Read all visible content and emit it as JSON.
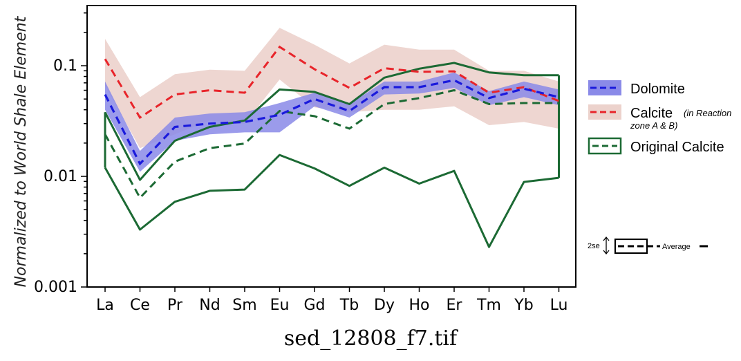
{
  "caption": "sed_12808_f7.tif",
  "colors": {
    "dolomite_line": "#1a1adc",
    "dolomite_band": "#8a8ae8",
    "calcite_line": "#e8242a",
    "calcite_band": "#ecd2cc",
    "original_line": "#1c6a34"
  },
  "chart_data": {
    "type": "line",
    "y_scale": "log",
    "ylim": [
      0.001,
      0.35
    ],
    "ylabel": "Normalized to World Shale Element",
    "xlabel": "",
    "y_ticks": [
      0.001,
      0.01,
      0.1
    ],
    "y_tick_labels": [
      "0.001",
      "0.01",
      "0.1"
    ],
    "categories": [
      "La",
      "Ce",
      "Pr",
      "Nd",
      "Sm",
      "Eu",
      "Gd",
      "Tb",
      "Dy",
      "Ho",
      "Er",
      "Tm",
      "Yb",
      "Lu"
    ],
    "grid": false,
    "legend_position": "right",
    "series": [
      {
        "name": "Calcite",
        "name_note": "(in Reaction zone A & B)",
        "style": "dashed",
        "values": [
          0.115,
          0.034,
          0.055,
          0.06,
          0.057,
          0.148,
          0.093,
          0.063,
          0.095,
          0.088,
          0.089,
          0.057,
          0.064,
          0.048
        ],
        "band_upper": [
          0.175,
          0.052,
          0.084,
          0.092,
          0.09,
          0.22,
          0.155,
          0.105,
          0.155,
          0.14,
          0.14,
          0.09,
          0.09,
          0.072
        ],
        "band_lower": [
          0.066,
          0.018,
          0.024,
          0.032,
          0.03,
          0.075,
          0.042,
          0.038,
          0.04,
          0.04,
          0.043,
          0.029,
          0.031,
          0.027
        ]
      },
      {
        "name": "Dolomite",
        "style": "dashed",
        "values": [
          0.055,
          0.013,
          0.028,
          0.03,
          0.031,
          0.036,
          0.05,
          0.039,
          0.064,
          0.064,
          0.074,
          0.051,
          0.062,
          0.052
        ],
        "band_upper": [
          0.072,
          0.017,
          0.034,
          0.037,
          0.038,
          0.046,
          0.057,
          0.045,
          0.072,
          0.072,
          0.087,
          0.059,
          0.072,
          0.061
        ],
        "band_lower": [
          0.04,
          0.011,
          0.021,
          0.024,
          0.025,
          0.025,
          0.043,
          0.034,
          0.055,
          0.056,
          0.063,
          0.044,
          0.052,
          0.044
        ]
      },
      {
        "name": "Original Calcite",
        "style": "dashed",
        "values": [
          0.024,
          0.0064,
          0.0136,
          0.018,
          0.0198,
          0.039,
          0.035,
          0.027,
          0.045,
          0.051,
          0.06,
          0.045,
          0.046,
          0.046
        ],
        "band_upper": [
          0.038,
          0.0093,
          0.021,
          0.028,
          0.032,
          0.061,
          0.058,
          0.045,
          0.078,
          0.094,
          0.106,
          0.087,
          0.082,
          0.082
        ],
        "band_lower": [
          0.012,
          0.0033,
          0.0059,
          0.0074,
          0.0076,
          0.0156,
          0.0118,
          0.0082,
          0.012,
          0.0086,
          0.0112,
          0.0023,
          0.0089,
          0.0097
        ]
      }
    ],
    "scale_key": {
      "error_label": "2se",
      "average_label": "Average"
    }
  }
}
